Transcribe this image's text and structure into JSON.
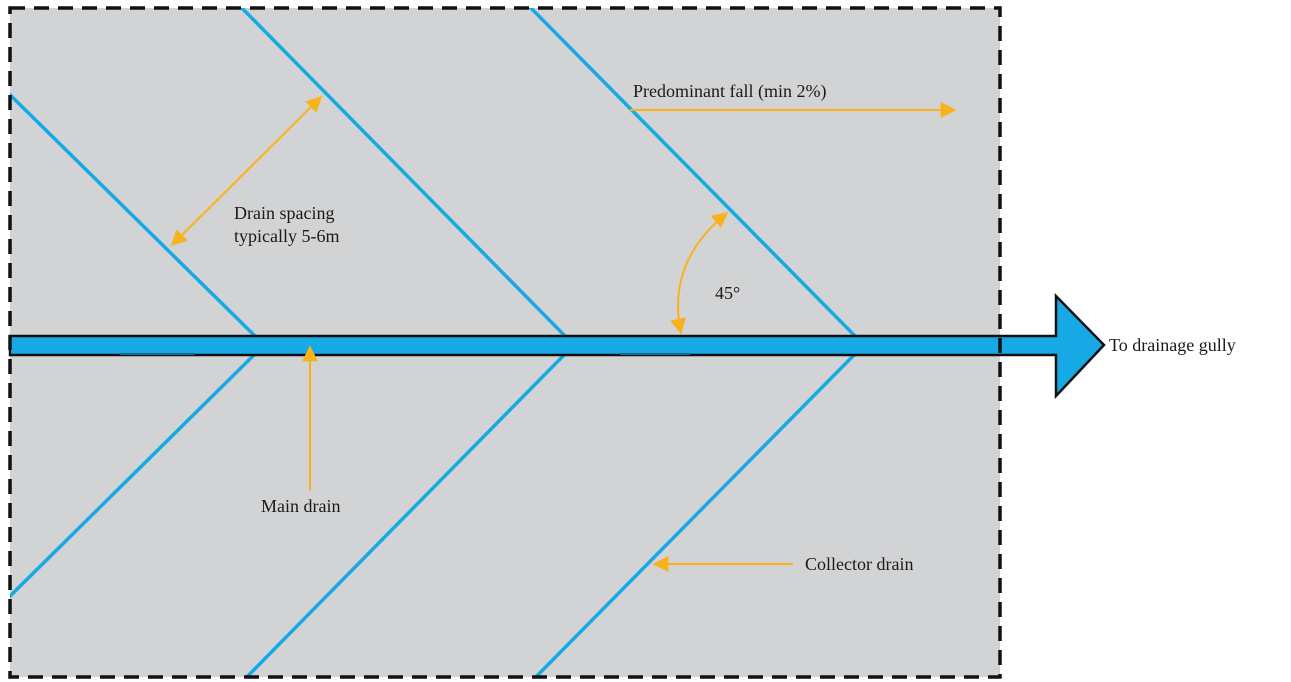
{
  "labels": {
    "fall": "Predominant fall (min 2%)",
    "spacing_line1": "Drain spacing",
    "spacing_line2": "typically 5-6m",
    "angle": "45°",
    "outlet": "To drainage gully",
    "main_drain": "Main drain",
    "collector_drain": "Collector drain"
  },
  "colors": {
    "area_fill": "#d2d3d5",
    "boundary": "#111111",
    "drain": "#17a9e6",
    "main_drain_outline": "#111111",
    "annotation": "#f9b21b",
    "text": "#1a1a1a"
  }
}
